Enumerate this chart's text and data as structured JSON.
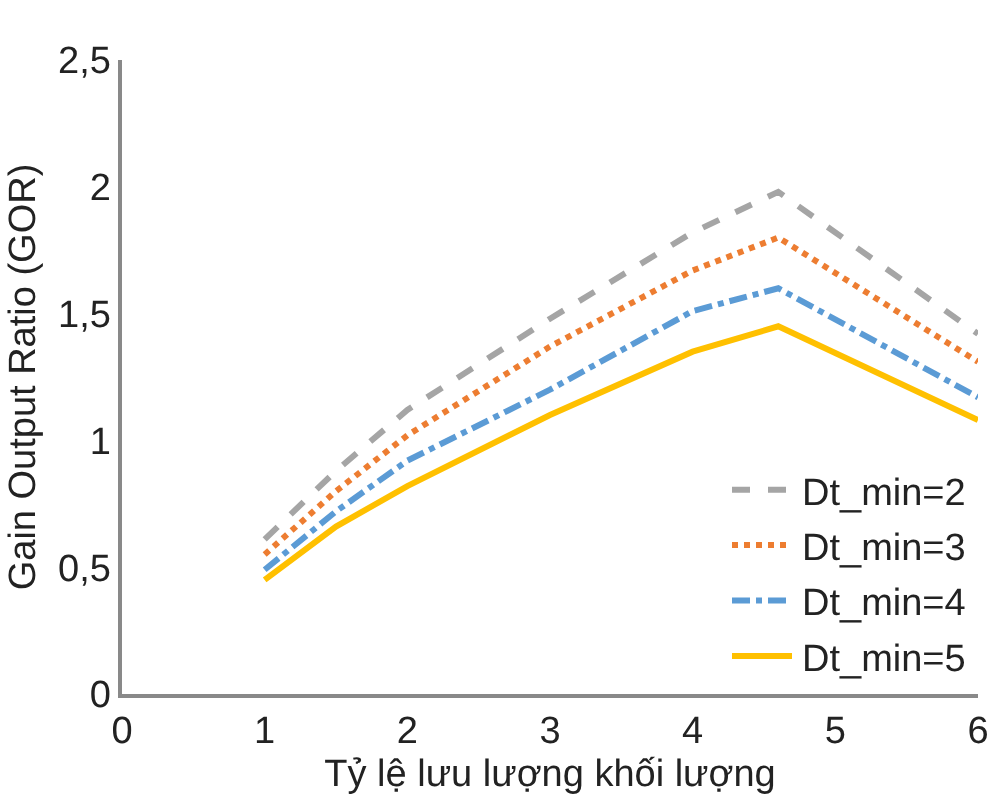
{
  "chart_data": {
    "type": "line",
    "xlabel": "Tỷ lệ lưu lượng khối lượng",
    "ylabel": "Gain Output Ratio (GOR)",
    "x": [
      1,
      1.5,
      2,
      3,
      4,
      4.6,
      6
    ],
    "series": [
      {
        "name": "Dt_min=2",
        "color": "#a5a5a5",
        "line_style": "dashed",
        "values": [
          0.61,
          0.88,
          1.12,
          1.48,
          1.82,
          1.98,
          1.42
        ]
      },
      {
        "name": "Dt_min=3",
        "color": "#ed7d31",
        "line_style": "dotted",
        "values": [
          0.55,
          0.8,
          1.02,
          1.37,
          1.67,
          1.8,
          1.31
        ]
      },
      {
        "name": "Dt_min=4",
        "color": "#5b9bd5",
        "line_style": "dashdot",
        "values": [
          0.49,
          0.72,
          0.92,
          1.2,
          1.51,
          1.6,
          1.17
        ]
      },
      {
        "name": "Dt_min=5",
        "color": "#ffc000",
        "line_style": "solid",
        "values": [
          0.45,
          0.66,
          0.82,
          1.1,
          1.35,
          1.45,
          1.08
        ]
      }
    ],
    "xlim": [
      0,
      6
    ],
    "xticks": [
      0,
      1,
      2,
      3,
      4,
      5,
      6
    ],
    "ylim": [
      0,
      2.5
    ],
    "yticks": [
      0,
      {
        "value": 0.5,
        "label": "0,5"
      },
      1,
      {
        "value": 1.5,
        "label": "1,5"
      },
      2,
      {
        "value": 2.5,
        "label": "2,5"
      }
    ],
    "legend": "bottom right",
    "marker": "none"
  }
}
